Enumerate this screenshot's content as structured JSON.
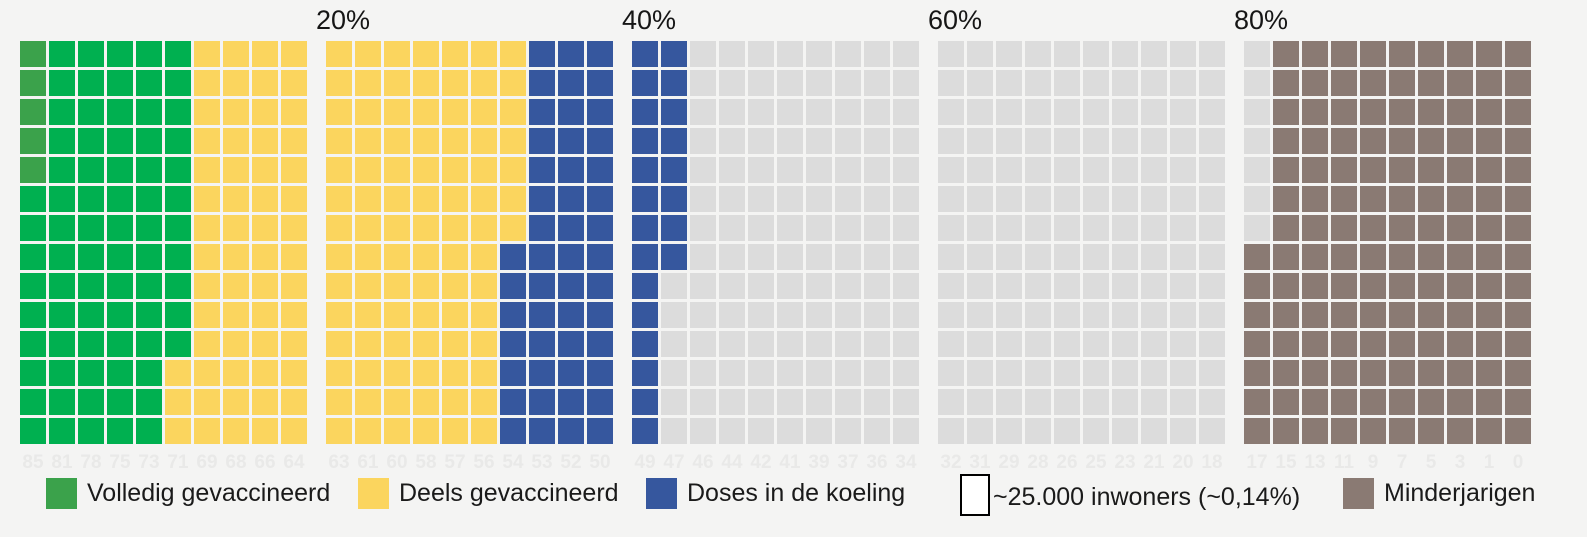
{
  "axis_top": {
    "labels": [
      "20%",
      "40%",
      "60%",
      "80%"
    ]
  },
  "legend": {
    "items": [
      {
        "label": "Volledig gevaccineerd",
        "swatch": "volledig_dark"
      },
      {
        "label": "Deels gevaccineerd",
        "swatch": "deels"
      },
      {
        "label": "Doses in de koeling",
        "swatch": "doses"
      },
      {
        "label": "~25.000 inwoners (~0,14%)",
        "swatch": "unit"
      },
      {
        "label": "Minderjarigen",
        "swatch": "minderjarigen"
      }
    ]
  },
  "colors": {
    "volledig_dark": "#3ba24b",
    "volledig": "#00b050",
    "deels": "#fbd55e",
    "doses": "#36579e",
    "rest": "#dcdcdc",
    "minderjarigen": "#8a7a73",
    "background": "#f4f4f3",
    "age_label": "#e9e9e8",
    "unit_swatch_fill": "#ffffff",
    "unit_swatch_border": "#000000",
    "axis_text": "#161616"
  },
  "chart_data": {
    "type": "waffle",
    "title": "",
    "unit_label": "~25.000 inwoners (~0,14%)",
    "blocks": 5,
    "columns_per_block": 10,
    "rows_per_column": 14,
    "top_axis_labels": [
      "20%",
      "40%",
      "60%",
      "80%"
    ],
    "legend_entries": [
      "Volledig gevaccineerd",
      "Deels gevaccineerd",
      "Doses in de koeling",
      "~25.000 inwoners (~0,14%)",
      "Minderjarigen"
    ],
    "fill_order": "top-to-bottom within column, columns left-to-right",
    "columns": [
      {
        "age": "85",
        "segments": [
          [
            "volledig_dark",
            5
          ],
          [
            "volledig",
            9
          ]
        ]
      },
      {
        "age": "81",
        "segments": [
          [
            "volledig",
            14
          ]
        ]
      },
      {
        "age": "78",
        "segments": [
          [
            "volledig",
            14
          ]
        ]
      },
      {
        "age": "75",
        "segments": [
          [
            "volledig",
            14
          ]
        ]
      },
      {
        "age": "73",
        "segments": [
          [
            "volledig",
            14
          ]
        ]
      },
      {
        "age": "71",
        "segments": [
          [
            "volledig",
            11
          ],
          [
            "deels",
            3
          ]
        ]
      },
      {
        "age": "69",
        "segments": [
          [
            "deels",
            14
          ]
        ]
      },
      {
        "age": "68",
        "segments": [
          [
            "deels",
            14
          ]
        ]
      },
      {
        "age": "66",
        "segments": [
          [
            "deels",
            14
          ]
        ]
      },
      {
        "age": "64",
        "segments": [
          [
            "deels",
            14
          ]
        ]
      },
      {
        "age": "63",
        "segments": [
          [
            "deels",
            14
          ]
        ]
      },
      {
        "age": "61",
        "segments": [
          [
            "deels",
            14
          ]
        ]
      },
      {
        "age": "60",
        "segments": [
          [
            "deels",
            14
          ]
        ]
      },
      {
        "age": "58",
        "segments": [
          [
            "deels",
            14
          ]
        ]
      },
      {
        "age": "57",
        "segments": [
          [
            "deels",
            14
          ]
        ]
      },
      {
        "age": "56",
        "segments": [
          [
            "deels",
            14
          ]
        ]
      },
      {
        "age": "54",
        "segments": [
          [
            "deels",
            7
          ],
          [
            "doses",
            7
          ]
        ]
      },
      {
        "age": "53",
        "segments": [
          [
            "doses",
            14
          ]
        ]
      },
      {
        "age": "52",
        "segments": [
          [
            "doses",
            14
          ]
        ]
      },
      {
        "age": "50",
        "segments": [
          [
            "doses",
            14
          ]
        ]
      },
      {
        "age": "49",
        "segments": [
          [
            "doses",
            14
          ]
        ]
      },
      {
        "age": "47",
        "segments": [
          [
            "doses",
            8
          ],
          [
            "rest",
            6
          ]
        ]
      },
      {
        "age": "46",
        "segments": [
          [
            "rest",
            14
          ]
        ]
      },
      {
        "age": "44",
        "segments": [
          [
            "rest",
            14
          ]
        ]
      },
      {
        "age": "42",
        "segments": [
          [
            "rest",
            14
          ]
        ]
      },
      {
        "age": "41",
        "segments": [
          [
            "rest",
            14
          ]
        ]
      },
      {
        "age": "39",
        "segments": [
          [
            "rest",
            14
          ]
        ]
      },
      {
        "age": "37",
        "segments": [
          [
            "rest",
            14
          ]
        ]
      },
      {
        "age": "36",
        "segments": [
          [
            "rest",
            14
          ]
        ]
      },
      {
        "age": "34",
        "segments": [
          [
            "rest",
            14
          ]
        ]
      },
      {
        "age": "32",
        "segments": [
          [
            "rest",
            14
          ]
        ]
      },
      {
        "age": "31",
        "segments": [
          [
            "rest",
            14
          ]
        ]
      },
      {
        "age": "29",
        "segments": [
          [
            "rest",
            14
          ]
        ]
      },
      {
        "age": "28",
        "segments": [
          [
            "rest",
            14
          ]
        ]
      },
      {
        "age": "26",
        "segments": [
          [
            "rest",
            14
          ]
        ]
      },
      {
        "age": "25",
        "segments": [
          [
            "rest",
            14
          ]
        ]
      },
      {
        "age": "23",
        "segments": [
          [
            "rest",
            14
          ]
        ]
      },
      {
        "age": "21",
        "segments": [
          [
            "rest",
            14
          ]
        ]
      },
      {
        "age": "20",
        "segments": [
          [
            "rest",
            14
          ]
        ]
      },
      {
        "age": "18",
        "segments": [
          [
            "rest",
            14
          ]
        ]
      },
      {
        "age": "17",
        "segments": [
          [
            "rest",
            7
          ],
          [
            "minderjarigen",
            7
          ]
        ]
      },
      {
        "age": "15",
        "segments": [
          [
            "minderjarigen",
            14
          ]
        ]
      },
      {
        "age": "13",
        "segments": [
          [
            "minderjarigen",
            14
          ]
        ]
      },
      {
        "age": "11",
        "segments": [
          [
            "minderjarigen",
            14
          ]
        ]
      },
      {
        "age": "9",
        "segments": [
          [
            "minderjarigen",
            14
          ]
        ]
      },
      {
        "age": "7",
        "segments": [
          [
            "minderjarigen",
            14
          ]
        ]
      },
      {
        "age": "5",
        "segments": [
          [
            "minderjarigen",
            14
          ]
        ]
      },
      {
        "age": "3",
        "segments": [
          [
            "minderjarigen",
            14
          ]
        ]
      },
      {
        "age": "1",
        "segments": [
          [
            "minderjarigen",
            14
          ]
        ]
      },
      {
        "age": "0",
        "segments": [
          [
            "minderjarigen",
            14
          ]
        ]
      }
    ]
  }
}
